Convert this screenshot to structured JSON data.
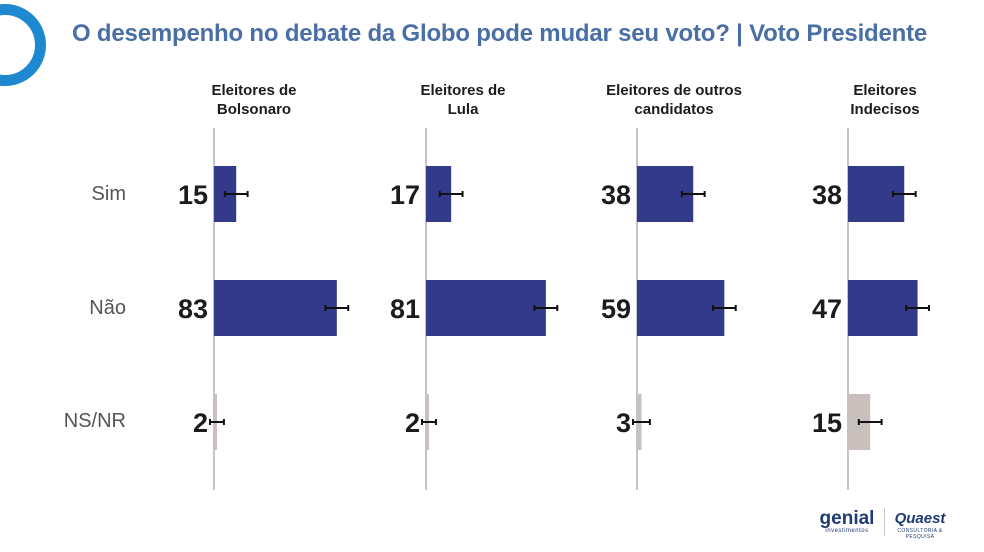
{
  "title": "O desempenho no debate da Globo pode mudar seu voto? | Voto Presidente",
  "brand": {
    "genial_name": "genial",
    "genial_tagline": "investimentos",
    "quaest_name": "Quaest",
    "quaest_tagline": "CONSULTORIA & PESQUISA"
  },
  "colors": {
    "bar_main": "#333a8a",
    "bar_nsnr": "#c9bfbd",
    "title": "#4a6fa5",
    "logo_ring": "#1e88d0"
  },
  "chart_data": {
    "type": "bar",
    "orientation": "horizontal",
    "title": "O desempenho no debate da Globo pode mudar seu voto? | Voto Presidente",
    "categories": [
      "Sim",
      "Não",
      "NS/NR"
    ],
    "panels": [
      {
        "header_line1": "Eleitores de",
        "header_line2": "Bolsonaro",
        "values": [
          15,
          83,
          2
        ]
      },
      {
        "header_line1": "Eleitores de",
        "header_line2": "Lula",
        "values": [
          17,
          81,
          2
        ]
      },
      {
        "header_line1": "Eleitores de outros",
        "header_line2": "candidatos",
        "values": [
          38,
          59,
          3
        ]
      },
      {
        "header_line1": "Eleitores",
        "header_line2": "Indecisos",
        "values": [
          38,
          47,
          15
        ]
      }
    ],
    "error_bars": true,
    "xlim": [
      0,
      100
    ],
    "grid": false,
    "legend": "none"
  }
}
